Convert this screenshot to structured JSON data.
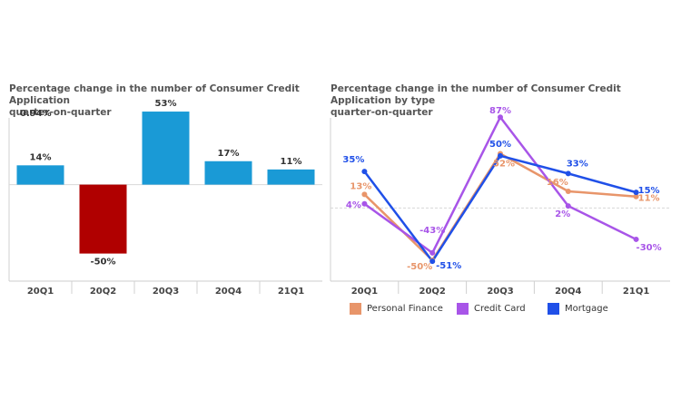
{
  "chart_data": [
    {
      "type": "bar",
      "title": "Percentage change in the number of Consumer Credit Application\nquarter-on-quarter",
      "corner_label": "0.94%",
      "categories": [
        "20Q1",
        "20Q2",
        "20Q3",
        "20Q4",
        "21Q1"
      ],
      "values": [
        14,
        -50,
        53,
        17,
        11
      ],
      "value_labels": [
        "14%",
        "-50%",
        "53%",
        "17%",
        "11%"
      ],
      "colors": [
        "#1a9ad6",
        "#b00000",
        "#1a9ad6",
        "#1a9ad6",
        "#1a9ad6"
      ],
      "ylim": [
        -70,
        55
      ],
      "grid": false
    },
    {
      "type": "line",
      "title": "Percentage change in the number of Consumer Credit Application by type\nquarter-on-quarter",
      "categories": [
        "20Q1",
        "20Q2",
        "20Q3",
        "20Q4",
        "21Q1"
      ],
      "ylim": [
        -70,
        95
      ],
      "legend": "bottom",
      "series": [
        {
          "name": "Personal Finance",
          "color": "#e8956a",
          "values": [
            13,
            -50,
            52,
            16,
            11
          ],
          "labels": [
            "13%",
            "-50%",
            "52%",
            "16%",
            "11%"
          ]
        },
        {
          "name": "Credit Card",
          "color": "#a855e8",
          "values": [
            4,
            -43,
            87,
            2,
            -30
          ],
          "labels": [
            "4%",
            "-43%",
            "87%",
            "2%",
            "-30%"
          ]
        },
        {
          "name": "Mortgage",
          "color": "#2050e8",
          "values": [
            35,
            -51,
            50,
            33,
            15
          ],
          "labels": [
            "35%",
            "-51%",
            "50%",
            "33%",
            "15%"
          ]
        }
      ]
    }
  ]
}
